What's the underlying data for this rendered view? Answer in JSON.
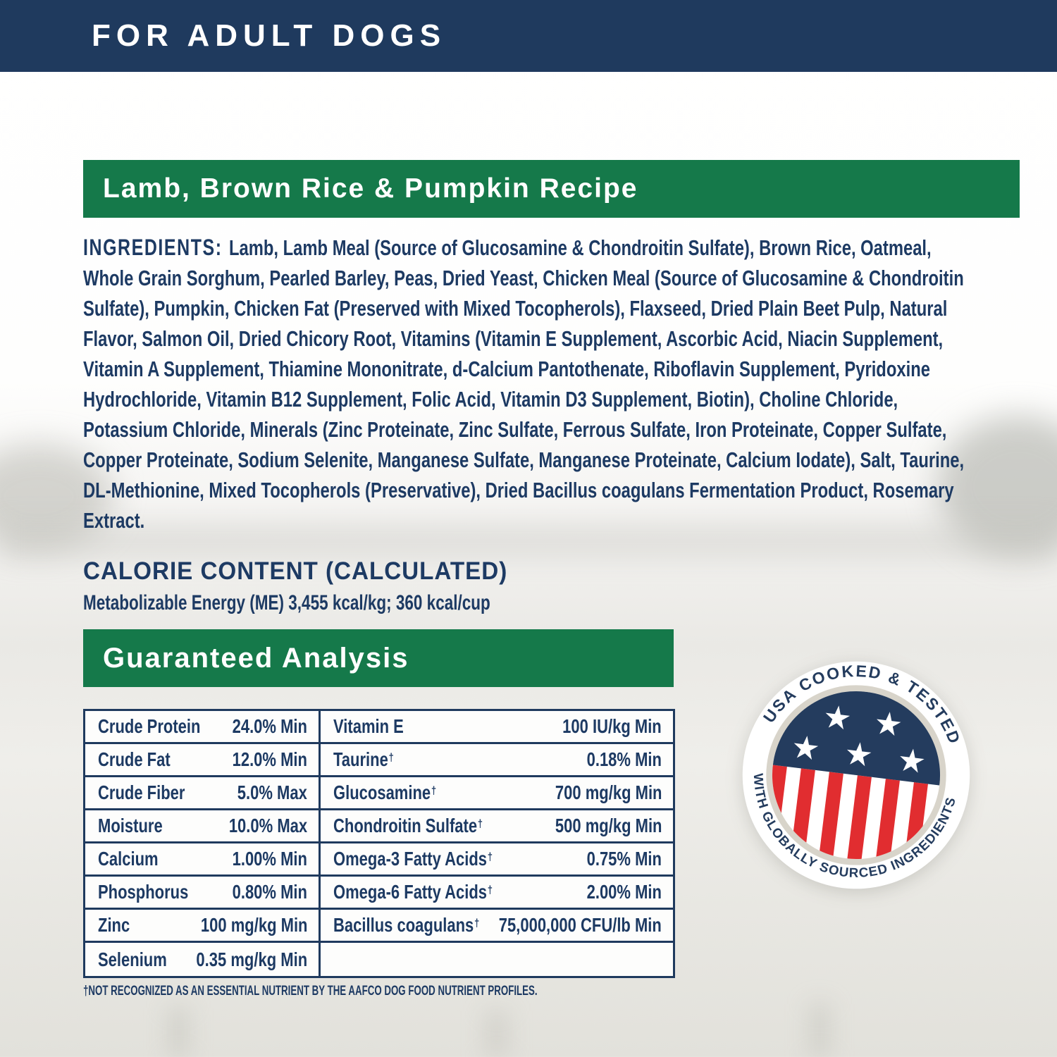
{
  "page": {
    "title_bar": "FOR ADULT DOGS"
  },
  "recipe_banner": {
    "label": "Lamb, Brown Rice & Pumpkin Recipe"
  },
  "ingredients": {
    "label": "INGREDIENTS:",
    "text": "Lamb, Lamb Meal (Source of Glucosamine & Chondroitin Sulfate), Brown Rice, Oatmeal, Whole Grain Sorghum, Pearled Barley, Peas, Dried Yeast, Chicken Meal (Source of Glucosamine & Chondroitin Sulfate), Pumpkin, Chicken Fat (Preserved with Mixed Tocopherols), Flaxseed, Dried Plain Beet Pulp, Natural Flavor, Salmon Oil, Dried Chicory Root, Vitamins (Vitamin E Supplement, Ascorbic Acid, Niacin Supplement, Vitamin A Supplement, Thiamine Mononitrate, d-Calcium Pantothenate, Riboflavin Supplement, Pyridoxine Hydrochloride, Vitamin B12 Supplement, Folic Acid, Vitamin D3 Supplement, Biotin), Choline Chloride, Potassium Chloride, Minerals (Zinc Proteinate, Zinc Sulfate, Ferrous Sulfate, Iron Proteinate, Copper Sulfate, Copper Proteinate, Sodium Selenite, Manganese Sulfate, Manganese Proteinate, Calcium Iodate), Salt, Taurine, DL-Methionine, Mixed Tocopherols (Preservative), Dried Bacillus coagulans Fermentation Product, Rosemary Extract."
  },
  "calorie_content": {
    "heading": "CALORIE CONTENT (CALCULATED)",
    "detail": "Metabolizable Energy (ME) 3,455 kcal/kg; 360 kcal/cup"
  },
  "guaranteed_analysis": {
    "heading": "Guaranteed Analysis",
    "left_rows": [
      {
        "name": "Crude Protein",
        "dagger": false,
        "value": "24.0% Min"
      },
      {
        "name": "Crude Fat",
        "dagger": false,
        "value": "12.0% Min"
      },
      {
        "name": "Crude Fiber",
        "dagger": false,
        "value": "5.0% Max"
      },
      {
        "name": "Moisture",
        "dagger": false,
        "value": "10.0% Max"
      },
      {
        "name": "Calcium",
        "dagger": false,
        "value": "1.00% Min"
      },
      {
        "name": "Phosphorus",
        "dagger": false,
        "value": "0.80% Min"
      },
      {
        "name": "Zinc",
        "dagger": false,
        "value": "100 mg/kg Min"
      },
      {
        "name": "Selenium",
        "dagger": false,
        "value": "0.35 mg/kg Min"
      }
    ],
    "right_rows": [
      {
        "name": "Vitamin E",
        "dagger": false,
        "value": "100 IU/kg Min"
      },
      {
        "name": "Taurine",
        "dagger": true,
        "value": "0.18% Min"
      },
      {
        "name": "Glucosamine",
        "dagger": true,
        "value": "700 mg/kg Min"
      },
      {
        "name": "Chondroitin Sulfate",
        "dagger": true,
        "value": "500 mg/kg Min"
      },
      {
        "name": "Omega-3 Fatty Acids",
        "dagger": true,
        "value": "0.75% Min"
      },
      {
        "name": "Omega-6 Fatty Acids",
        "dagger": true,
        "value": "2.00% Min"
      },
      {
        "name": "Bacillus coagulans",
        "dagger": true,
        "value": "75,000,000 CFU/lb Min"
      },
      {
        "name": "",
        "dagger": false,
        "value": ""
      }
    ],
    "footnote": "†NOT RECOGNIZED AS AN ESSENTIAL NUTRIENT BY THE AAFCO DOG FOOD NUTRIENT PROFILES."
  },
  "badge": {
    "arc_top": "USA COOKED & TESTED",
    "arc_bottom": "WITH GLOBALLY SOURCED INGREDIENTS"
  },
  "colors": {
    "navy": "#1f3a5e",
    "green": "#15794a",
    "badge_navy": "#243c5e",
    "badge_red": "#e12d30"
  }
}
